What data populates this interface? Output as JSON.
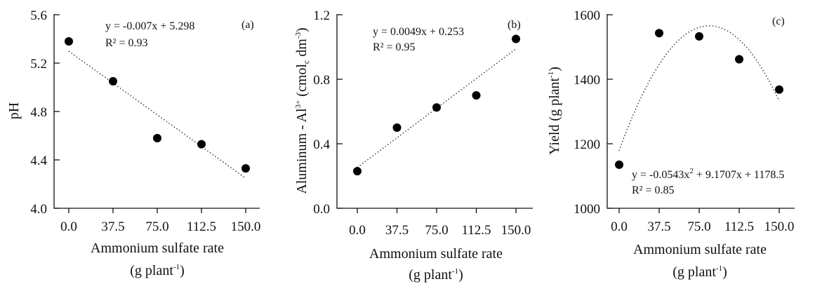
{
  "chart_data": [
    {
      "type": "scatter",
      "panel_label": "(a)",
      "x_title": "Ammonium sulfate rate",
      "x_unit_prefix": "(g plant",
      "x_unit_sup": "-1",
      "x_unit_suffix": ")",
      "y_title": "pH",
      "x": [
        0,
        37.5,
        75,
        112.5,
        150
      ],
      "x_tick_labels": [
        "0.0",
        "37.5",
        "75.0",
        "112.5",
        "150.0"
      ],
      "y": [
        5.38,
        5.05,
        4.58,
        4.53,
        4.33
      ],
      "ylim": [
        4.0,
        5.6
      ],
      "yticks": [
        4.0,
        4.4,
        4.8,
        5.2,
        5.6
      ],
      "y_tick_labels": [
        "4.0",
        "4.4",
        "4.8",
        "5.2",
        "5.6"
      ],
      "trend": {
        "kind": "linear",
        "coef": [
          5.298,
          -0.007
        ],
        "x_range": [
          0,
          150
        ]
      },
      "equation": "y = -0.007x + 5.298",
      "r2": "R² = 0.93"
    },
    {
      "type": "scatter",
      "panel_label": "(b)",
      "x_title": "Ammonium sulfate rate",
      "x_unit_prefix": "(g plant",
      "x_unit_sup": "-1",
      "x_unit_suffix": ")",
      "y_title_prefix": "Aluminum - Al",
      "y_title_sup": "3+",
      "y_title_mid": " (cmol",
      "y_title_sub": "c",
      "y_title_mid2": " dm",
      "y_title_sup2": "-3",
      "y_title_suffix": ")",
      "x": [
        0,
        37.5,
        75,
        112.5,
        150
      ],
      "x_tick_labels": [
        "0.0",
        "37.5",
        "75.0",
        "112.5",
        "150.0"
      ],
      "y": [
        0.23,
        0.5,
        0.625,
        0.7,
        1.05
      ],
      "ylim": [
        0.0,
        1.2
      ],
      "yticks": [
        0.0,
        0.4,
        0.8,
        1.2
      ],
      "y_tick_labels": [
        "0.0",
        "0.4",
        "0.8",
        "1.2"
      ],
      "trend": {
        "kind": "linear",
        "coef": [
          0.253,
          0.0049
        ],
        "x_range": [
          0,
          150
        ]
      },
      "equation": "y = 0.0049x + 0.253",
      "r2": "R² = 0.95"
    },
    {
      "type": "scatter",
      "panel_label": "(c)",
      "x_title": "Ammonium sulfate rate",
      "x_unit_prefix": "(g plant",
      "x_unit_sup": "-1",
      "x_unit_suffix": ")",
      "y_title_prefix": "Yield (g plant",
      "y_title_sup": "-1",
      "y_title_suffix": ")",
      "x": [
        0,
        37.5,
        75,
        112.5,
        150
      ],
      "x_tick_labels": [
        "0.0",
        "37.5",
        "75.0",
        "112.5",
        "150.0"
      ],
      "y": [
        1135,
        1543,
        1533,
        1462,
        1368
      ],
      "ylim": [
        1000,
        1600
      ],
      "yticks": [
        1000,
        1200,
        1400,
        1600
      ],
      "y_tick_labels": [
        "1000",
        "1200",
        "1400",
        "1600"
      ],
      "trend": {
        "kind": "quadratic",
        "coef": [
          1178.5,
          9.1707,
          -0.0543
        ],
        "x_range": [
          0,
          150
        ]
      },
      "equation_prefix": "y = -0.0543x",
      "equation_sup": "2",
      "equation_suffix": " + 9.1707x + 1178.5",
      "r2": "R² = 0.85"
    }
  ]
}
